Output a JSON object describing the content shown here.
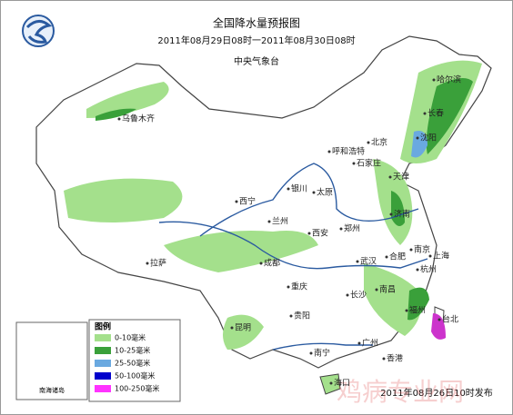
{
  "header": {
    "title": "全国降水量预报图",
    "period": "2011年08月29日08时一2011年08月30日08时",
    "issuer": "中央气象台"
  },
  "cities": [
    "哈尔滨",
    "长春",
    "沈阳",
    "北京",
    "呼和浩特",
    "天津",
    "石家庄",
    "太原",
    "银川",
    "西宁",
    "兰州",
    "济南",
    "郑州",
    "西安",
    "拉萨",
    "成都",
    "合肥",
    "南京",
    "上海",
    "武汉",
    "杭州",
    "重庆",
    "长沙",
    "南昌",
    "贵阳",
    "昆明",
    "福州",
    "台北",
    "南宁",
    "广州",
    "香港",
    "海口",
    "乌鲁木齐"
  ],
  "legend": {
    "title": "图例",
    "items": [
      "0-10毫米",
      "10-25毫米",
      "25-50毫米",
      "50-100毫米",
      "100-250毫米"
    ]
  },
  "inset": "南海诸岛",
  "footer": "2011年08月26日10时发布",
  "watermark": "鸡病专业网"
}
